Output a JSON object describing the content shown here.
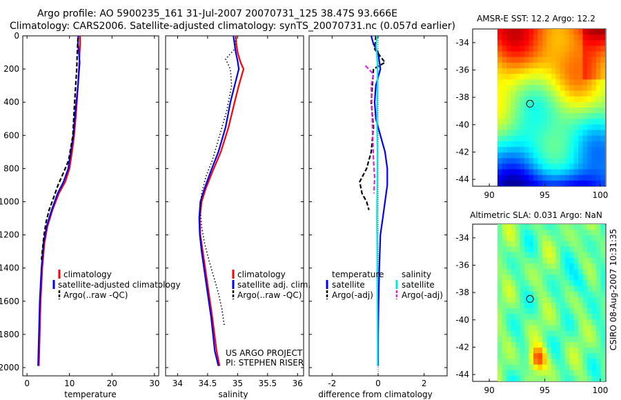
{
  "header": {
    "line1": "Argo profile: AO 5900235_161 31-Jul-2007 20070731_125 38.47S 93.666E",
    "line2": "Climatology: CARS2006. Satellite-adjusted climatology: synTS_20070731.nc (0.057d earlier)"
  },
  "colors": {
    "climatology": "#ff0000",
    "satellite": "#0000ff",
    "argo": "#000000",
    "sat_salinity": "#00e5e5",
    "argo_adj_salinity": "#e020e0"
  },
  "chart_data": [
    {
      "type": "line",
      "id": "temperature",
      "xlabel": "temperature",
      "xlim": [
        -1,
        31
      ],
      "ylim": [
        0,
        2050
      ],
      "y_reversed": true,
      "xticks": [
        0,
        10,
        20,
        30
      ],
      "yticks": [
        0,
        200,
        400,
        600,
        800,
        1000,
        1200,
        1400,
        1600,
        1800,
        2000
      ],
      "legend": [
        "climatology",
        "satellite-adjusted climatology",
        "Argo(..raw -QC)"
      ],
      "series": [
        {
          "name": "climatology",
          "color": "#ff0000",
          "style": "solid",
          "points": [
            [
              12.5,
              0
            ],
            [
              12.5,
              50
            ],
            [
              12.4,
              100
            ],
            [
              12.3,
              160
            ],
            [
              12.0,
              300
            ],
            [
              11.6,
              450
            ],
            [
              11.1,
              600
            ],
            [
              10.6,
              700
            ],
            [
              10.0,
              800
            ],
            [
              9.0,
              880
            ],
            [
              7.5,
              950
            ],
            [
              6.0,
              1050
            ],
            [
              4.8,
              1150
            ],
            [
              4.1,
              1250
            ],
            [
              3.6,
              1400
            ],
            [
              3.2,
              1600
            ],
            [
              3.0,
              1800
            ],
            [
              2.8,
              1990
            ]
          ]
        },
        {
          "name": "satellite-adjusted climatology",
          "color": "#0000ff",
          "style": "solid",
          "points": [
            [
              12.1,
              0
            ],
            [
              12.0,
              50
            ],
            [
              12.2,
              100
            ],
            [
              12.4,
              160
            ],
            [
              12.0,
              300
            ],
            [
              11.4,
              450
            ],
            [
              10.9,
              600
            ],
            [
              10.3,
              700
            ],
            [
              9.7,
              800
            ],
            [
              8.6,
              880
            ],
            [
              7.2,
              950
            ],
            [
              5.8,
              1050
            ],
            [
              4.6,
              1150
            ],
            [
              3.9,
              1250
            ],
            [
              3.4,
              1400
            ],
            [
              3.0,
              1600
            ],
            [
              2.8,
              1800
            ],
            [
              2.6,
              1990
            ]
          ]
        },
        {
          "name": "Argo(..raw -QC)",
          "color": "#000000",
          "style": "dashed",
          "points": [
            [
              12.0,
              10
            ],
            [
              11.9,
              60
            ],
            [
              11.8,
              120
            ],
            [
              11.7,
              200
            ],
            [
              11.2,
              400
            ],
            [
              10.8,
              600
            ],
            [
              9.8,
              750
            ],
            [
              8.5,
              830
            ],
            [
              7.3,
              900
            ],
            [
              6.2,
              980
            ],
            [
              5.2,
              1050
            ],
            [
              4.5,
              1120
            ],
            [
              4.0,
              1200
            ],
            [
              3.6,
              1300
            ],
            [
              3.4,
              1350
            ]
          ]
        }
      ]
    },
    {
      "type": "line",
      "id": "salinity",
      "xlabel": "salinity",
      "xlim": [
        33.8,
        36.1
      ],
      "ylim": [
        0,
        2050
      ],
      "y_reversed": true,
      "xticks": [
        34,
        34.5,
        35,
        35.5,
        36
      ],
      "xticklabels": [
        "34",
        "34.5",
        "35",
        "35.5",
        "36"
      ],
      "legend": [
        "climatology",
        "satellite adj. clim.",
        "Argo(..raw -QC)"
      ],
      "annotation": [
        "US ARGO PROJECT",
        "PI: STEPHEN RISER"
      ],
      "series": [
        {
          "name": "climatology",
          "color": "#ff0000",
          "style": "solid",
          "points": [
            [
              34.97,
              0
            ],
            [
              34.98,
              50
            ],
            [
              35.0,
              100
            ],
            [
              35.05,
              160
            ],
            [
              35.1,
              200
            ],
            [
              35.02,
              300
            ],
            [
              34.95,
              400
            ],
            [
              34.85,
              550
            ],
            [
              34.72,
              700
            ],
            [
              34.58,
              820
            ],
            [
              34.47,
              920
            ],
            [
              34.4,
              1000
            ],
            [
              34.37,
              1100
            ],
            [
              34.38,
              1200
            ],
            [
              34.42,
              1300
            ],
            [
              34.5,
              1500
            ],
            [
              34.58,
              1700
            ],
            [
              34.65,
              1900
            ],
            [
              34.7,
              1990
            ]
          ]
        },
        {
          "name": "satellite adj. clim.",
          "color": "#0000ff",
          "style": "solid",
          "points": [
            [
              34.93,
              0
            ],
            [
              34.95,
              50
            ],
            [
              34.97,
              100
            ],
            [
              35.0,
              150
            ],
            [
              35.02,
              200
            ],
            [
              34.95,
              300
            ],
            [
              34.88,
              400
            ],
            [
              34.8,
              550
            ],
            [
              34.68,
              700
            ],
            [
              34.55,
              820
            ],
            [
              34.45,
              920
            ],
            [
              34.38,
              1000
            ],
            [
              34.36,
              1100
            ],
            [
              34.37,
              1200
            ],
            [
              34.4,
              1300
            ],
            [
              34.48,
              1500
            ],
            [
              34.56,
              1700
            ],
            [
              34.62,
              1900
            ],
            [
              34.68,
              1990
            ]
          ]
        },
        {
          "name": "Argo(..raw -QC)",
          "color": "#000000",
          "style": "dotted",
          "points": [
            [
              34.97,
              10
            ],
            [
              34.95,
              80
            ],
            [
              34.8,
              140
            ],
            [
              34.88,
              200
            ],
            [
              34.9,
              300
            ],
            [
              34.82,
              450
            ],
            [
              34.7,
              600
            ],
            [
              34.58,
              750
            ],
            [
              34.47,
              850
            ],
            [
              34.4,
              950
            ],
            [
              34.38,
              1050
            ],
            [
              34.4,
              1150
            ],
            [
              34.45,
              1250
            ],
            [
              34.52,
              1350
            ],
            [
              34.6,
              1450
            ],
            [
              34.68,
              1550
            ],
            [
              34.74,
              1650
            ],
            [
              34.78,
              1750
            ]
          ]
        }
      ]
    },
    {
      "type": "line",
      "id": "difference",
      "xlabel": "difference from climatology",
      "xlim": [
        -3.0,
        3.0
      ],
      "ylim": [
        0,
        2050
      ],
      "y_reversed": true,
      "xticks": [
        -2,
        0,
        2
      ],
      "legend_temperature_title": "temperature",
      "legend_salinity_title": "salinity",
      "legend": [
        "satellite",
        "Argo(-adj)",
        "satellite",
        "Argo(-adj)"
      ],
      "series": [
        {
          "name": "temperature satellite",
          "color": "#0000ff",
          "style": "solid",
          "points": [
            [
              -0.3,
              0
            ],
            [
              -0.2,
              50
            ],
            [
              0.0,
              100
            ],
            [
              0.1,
              200
            ],
            [
              -0.1,
              300
            ],
            [
              -0.15,
              400
            ],
            [
              -0.1,
              500
            ],
            [
              0.1,
              600
            ],
            [
              0.3,
              700
            ],
            [
              0.4,
              800
            ],
            [
              0.4,
              900
            ],
            [
              0.3,
              1000
            ],
            [
              0.2,
              1100
            ],
            [
              0.1,
              1200
            ],
            [
              0.05,
              1400
            ],
            [
              0.02,
              1600
            ],
            [
              0.0,
              1800
            ],
            [
              0.0,
              1990
            ]
          ]
        },
        {
          "name": "temperature Argo(-adj)",
          "color": "#000000",
          "style": "dashed",
          "points": [
            [
              -0.1,
              0
            ],
            [
              -0.15,
              80
            ],
            [
              0.3,
              160
            ],
            [
              -0.2,
              200
            ],
            [
              -0.3,
              400
            ],
            [
              -0.2,
              550
            ],
            [
              -0.3,
              700
            ],
            [
              -0.5,
              800
            ],
            [
              -0.8,
              880
            ],
            [
              -0.7,
              950
            ],
            [
              -0.5,
              1000
            ],
            [
              -0.4,
              1050
            ]
          ]
        },
        {
          "name": "salinity satellite",
          "color": "#00e5e5",
          "style": "solid",
          "points": [
            [
              -0.05,
              0
            ],
            [
              -0.08,
              60
            ],
            [
              -0.05,
              120
            ],
            [
              -0.02,
              200
            ],
            [
              -0.03,
              300
            ],
            [
              -0.05,
              500
            ],
            [
              -0.03,
              700
            ],
            [
              -0.04,
              900
            ],
            [
              -0.05,
              1100
            ],
            [
              -0.04,
              1300
            ],
            [
              -0.04,
              1500
            ],
            [
              -0.03,
              1700
            ],
            [
              -0.02,
              1850
            ],
            [
              -0.02,
              1990
            ]
          ]
        },
        {
          "name": "salinity Argo(-adj)",
          "color": "#e020e0",
          "style": "dashed",
          "points": [
            [
              -0.55,
              180
            ],
            [
              -0.2,
              230
            ],
            [
              -0.3,
              300
            ],
            [
              -0.2,
              750
            ],
            [
              -0.15,
              850
            ],
            [
              -0.18,
              950
            ]
          ]
        }
      ]
    },
    {
      "type": "heatmap",
      "id": "sst-map",
      "title": "AMSR-E SST: 12.2 Argo: 12.2",
      "xlim": [
        88.5,
        100.5
      ],
      "ylim": [
        -44.5,
        -33
      ],
      "xticks": [
        90,
        95,
        100
      ],
      "yticks": [
        -34,
        -36,
        -38,
        -40,
        -42,
        -44
      ],
      "marker": [
        93.666,
        -38.47
      ],
      "colormap": "jet"
    },
    {
      "type": "heatmap",
      "id": "sla-map",
      "title": "Altimetric SLA: 0.031 Argo: NaN",
      "xlim": [
        88.5,
        100.5
      ],
      "ylim": [
        -44.5,
        -33
      ],
      "xticks": [
        90,
        95,
        100
      ],
      "yticks": [
        -34,
        -36,
        -38,
        -40,
        -42,
        -44
      ],
      "marker": [
        93.666,
        -38.47
      ],
      "colormap": "jet"
    }
  ],
  "footer": {
    "stamp": "CSIRO 08-Aug-2007 10:31:35"
  }
}
